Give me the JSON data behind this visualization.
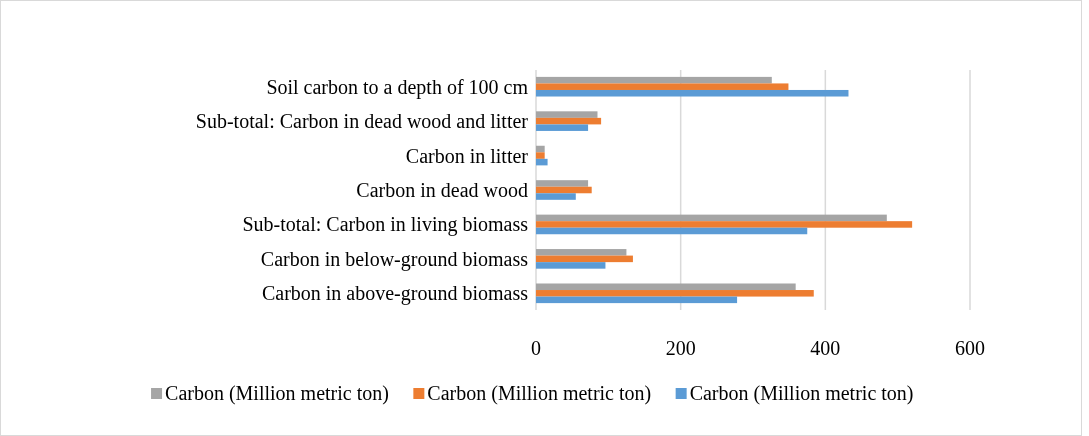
{
  "chart_data": {
    "type": "bar",
    "orientation": "horizontal",
    "categories": [
      "Soil carbon to a depth of 100 cm",
      "Sub-total: Carbon in dead wood and litter",
      "Carbon in litter",
      "Carbon in dead wood",
      "Sub-total: Carbon in living biomass",
      "Carbon in below-ground biomass",
      "Carbon in above-ground biomass"
    ],
    "series": [
      {
        "name": "Carbon (Million metric ton)",
        "color": "#a5a5a5",
        "values": [
          326,
          85,
          12,
          72,
          485,
          125,
          359
        ]
      },
      {
        "name": "Carbon (Million metric ton)",
        "color": "#ed7d31",
        "values": [
          349,
          90,
          12,
          77,
          520,
          134,
          384
        ]
      },
      {
        "name": "Carbon (Million metric ton)",
        "color": "#5b9bd5",
        "values": [
          432,
          72,
          16,
          55,
          375,
          96,
          278
        ]
      }
    ],
    "xlim": [
      0,
      600
    ],
    "xticks": [
      0,
      200,
      400,
      600
    ],
    "grid": "x",
    "legend": "bottom"
  }
}
